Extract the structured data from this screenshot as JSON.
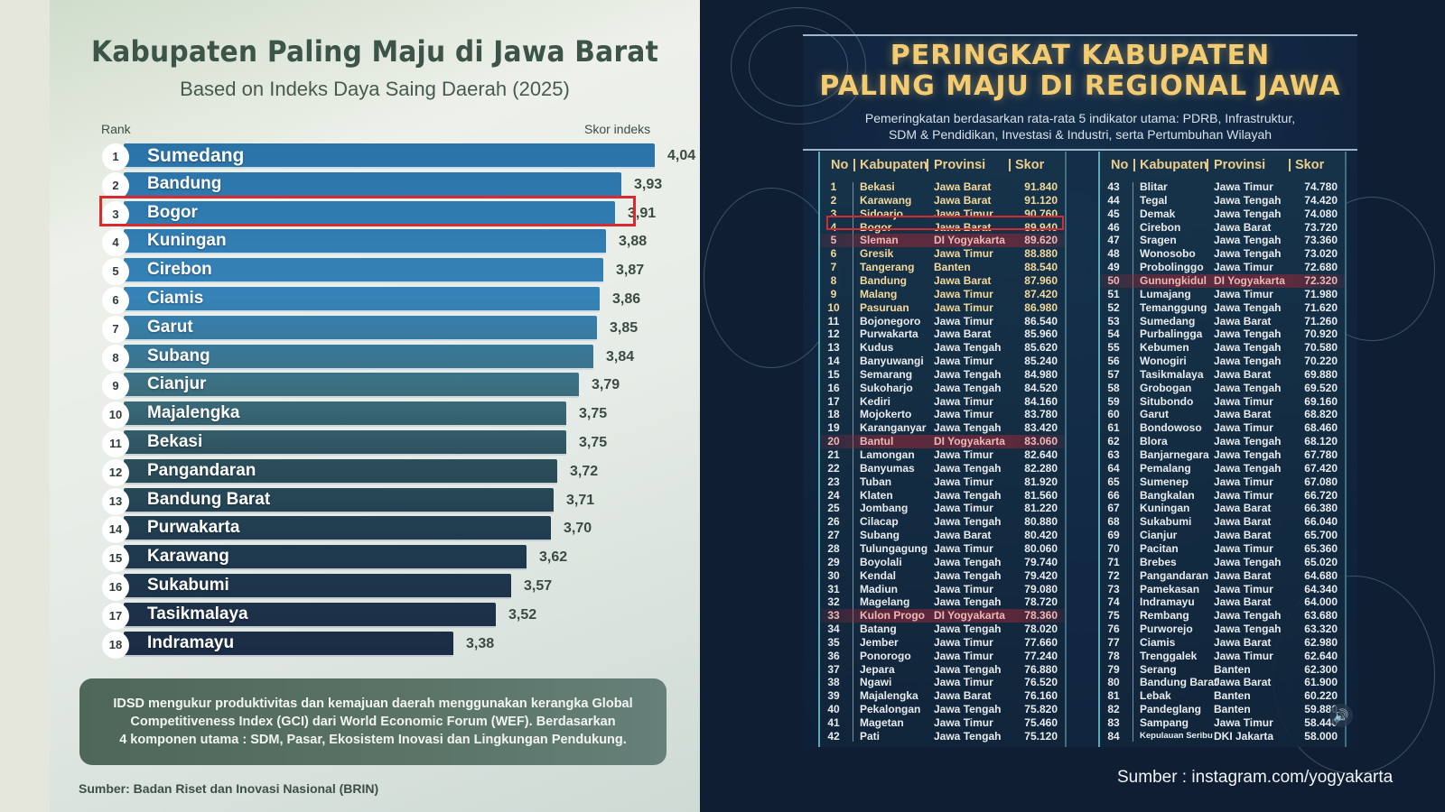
{
  "left_chart": {
    "title": "Kabupaten Paling Maju di Jawa Barat",
    "subtitle": "Based on Indeks Daya Saing Daerah (2025)",
    "rank_header": "Rank",
    "score_header": "Skor indeks",
    "note": "IDSD mengukur produktivitas dan kemajuan daerah menggunakan kerangka Global Competitiveness Index (GCI) dari World Economic Forum (WEF). Berdasarkan 4 komponen utama : SDM, Pasar, Ekosistem Inovasi dan Lingkungan Pendukung.",
    "note_lines": [
      "IDSD mengukur produktivitas dan kemajuan daerah menggunakan kerangka Global",
      "Competitiveness Index (GCI) dari World Economic Forum (WEF). Berdasarkan",
      "4 komponen utama : SDM, Pasar, Ekosistem Inovasi dan Lingkungan Pendukung."
    ],
    "source": "Sumber:  Badan Riset dan Inovasi Nasional (BRIN)",
    "highlight_rank": 3,
    "highlight_color": "#d82a2f"
  },
  "right_table": {
    "title_line1": "PERINGKAT KABUPATEN",
    "title_line2": "PALING MAJU DI REGIONAL JAWA",
    "subtitle_line1": "Pemeringkatan berdasarkan rata-rata 5 indikator utama: PDRB, Infrastruktur,",
    "subtitle_line2": "SDM & Pendidikan, Investasi & Industri, serta Pertumbuhan Wilayah",
    "headers": {
      "no": "No",
      "kabupaten": "Kabupaten",
      "provinsi": "Provinsi",
      "skor": "Skor"
    },
    "highlight_no": 4,
    "highlight_color": "#d52a2f",
    "emphasis_province": "DI Yogyakarta",
    "source": "Sumber : instagram.com/yogyakarta",
    "speaker_icon": "speaker-volume-icon"
  },
  "chart_data": [
    {
      "type": "bar",
      "orientation": "horizontal",
      "title": "Kabupaten Paling Maju di Jawa Barat",
      "subtitle": "Based on Indeks Daya Saing Daerah (2025)",
      "xlabel": "Skor indeks",
      "ylabel": "Rank",
      "categories": [
        "Sumedang",
        "Bandung",
        "Bogor",
        "Kuningan",
        "Cirebon",
        "Ciamis",
        "Garut",
        "Subang",
        "Cianjur",
        "Majalengka",
        "Bekasi",
        "Pangandaran",
        "Bandung Barat",
        "Purwakarta",
        "Karawang",
        "Sukabumi",
        "Tasikmalaya",
        "Indramayu"
      ],
      "values": [
        4.04,
        3.93,
        3.91,
        3.88,
        3.87,
        3.86,
        3.85,
        3.84,
        3.79,
        3.75,
        3.75,
        3.72,
        3.71,
        3.7,
        3.62,
        3.57,
        3.52,
        3.38
      ],
      "value_labels": [
        "4,04",
        "3,93",
        "3,91",
        "3,88",
        "3,87",
        "3,86",
        "3,85",
        "3,84",
        "3,79",
        "3,75",
        "3,75",
        "3,72",
        "3,71",
        "3,70",
        "3,62",
        "3,57",
        "3,52",
        "3,38"
      ],
      "annotations": [
        "Bogor (rank 3) highlighted with red box"
      ],
      "source": "Badan Riset dan Inovasi Nasional (BRIN)"
    },
    {
      "type": "table",
      "title": "Peringkat Kabupaten Paling Maju di Regional Jawa",
      "columns": [
        "No",
        "Kabupaten",
        "Provinsi",
        "Skor"
      ],
      "rows": [
        [
          1,
          "Bekasi",
          "Jawa Barat",
          "91.840"
        ],
        [
          2,
          "Karawang",
          "Jawa Barat",
          "91.120"
        ],
        [
          3,
          "Sidoarjo",
          "Jawa Timur",
          "90.760"
        ],
        [
          4,
          "Bogor",
          "Jawa Barat",
          "89.940"
        ],
        [
          5,
          "Sleman",
          "DI Yogyakarta",
          "89.620"
        ],
        [
          6,
          "Gresik",
          "Jawa Timur",
          "88.880"
        ],
        [
          7,
          "Tangerang",
          "Banten",
          "88.540"
        ],
        [
          8,
          "Bandung",
          "Jawa Barat",
          "87.960"
        ],
        [
          9,
          "Malang",
          "Jawa Timur",
          "87.420"
        ],
        [
          10,
          "Pasuruan",
          "Jawa Timur",
          "86.980"
        ],
        [
          11,
          "Bojonegoro",
          "Jawa Timur",
          "86.540"
        ],
        [
          12,
          "Purwakarta",
          "Jawa Barat",
          "85.960"
        ],
        [
          13,
          "Kudus",
          "Jawa Tengah",
          "85.620"
        ],
        [
          14,
          "Banyuwangi",
          "Jawa Timur",
          "85.240"
        ],
        [
          15,
          "Semarang",
          "Jawa Tengah",
          "84.980"
        ],
        [
          16,
          "Sukoharjo",
          "Jawa Tengah",
          "84.520"
        ],
        [
          17,
          "Kediri",
          "Jawa Timur",
          "84.160"
        ],
        [
          18,
          "Mojokerto",
          "Jawa Timur",
          "83.780"
        ],
        [
          19,
          "Karanganyar",
          "Jawa Tengah",
          "83.420"
        ],
        [
          20,
          "Bantul",
          "DI Yogyakarta",
          "83.060"
        ],
        [
          21,
          "Lamongan",
          "Jawa Timur",
          "82.640"
        ],
        [
          22,
          "Banyumas",
          "Jawa Tengah",
          "82.280"
        ],
        [
          23,
          "Tuban",
          "Jawa Timur",
          "81.920"
        ],
        [
          24,
          "Klaten",
          "Jawa Tengah",
          "81.560"
        ],
        [
          25,
          "Jombang",
          "Jawa Timur",
          "81.220"
        ],
        [
          26,
          "Cilacap",
          "Jawa Tengah",
          "80.880"
        ],
        [
          27,
          "Subang",
          "Jawa Barat",
          "80.420"
        ],
        [
          28,
          "Tulungagung",
          "Jawa Timur",
          "80.060"
        ],
        [
          29,
          "Boyolali",
          "Jawa Tengah",
          "79.740"
        ],
        [
          30,
          "Kendal",
          "Jawa Tengah",
          "79.420"
        ],
        [
          31,
          "Madiun",
          "Jawa Timur",
          "79.080"
        ],
        [
          32,
          "Magelang",
          "Jawa Tengah",
          "78.720"
        ],
        [
          33,
          "Kulon Progo",
          "DI Yogyakarta",
          "78.360"
        ],
        [
          34,
          "Batang",
          "Jawa Tengah",
          "78.020"
        ],
        [
          35,
          "Jember",
          "Jawa Timur",
          "77.660"
        ],
        [
          36,
          "Ponorogo",
          "Jawa Timur",
          "77.240"
        ],
        [
          37,
          "Jepara",
          "Jawa Tengah",
          "76.880"
        ],
        [
          38,
          "Ngawi",
          "Jawa Timur",
          "76.520"
        ],
        [
          39,
          "Majalengka",
          "Jawa Barat",
          "76.160"
        ],
        [
          40,
          "Pekalongan",
          "Jawa Tengah",
          "75.820"
        ],
        [
          41,
          "Magetan",
          "Jawa Timur",
          "75.460"
        ],
        [
          42,
          "Pati",
          "Jawa Tengah",
          "75.120"
        ],
        [
          43,
          "Blitar",
          "Jawa Timur",
          "74.780"
        ],
        [
          44,
          "Tegal",
          "Jawa Tengah",
          "74.420"
        ],
        [
          45,
          "Demak",
          "Jawa Tengah",
          "74.080"
        ],
        [
          46,
          "Cirebon",
          "Jawa Barat",
          "73.720"
        ],
        [
          47,
          "Sragen",
          "Jawa Tengah",
          "73.360"
        ],
        [
          48,
          "Wonosobo",
          "Jawa Tengah",
          "73.020"
        ],
        [
          49,
          "Probolinggo",
          "Jawa Timur",
          "72.680"
        ],
        [
          50,
          "Gunungkidul",
          "DI Yogyakarta",
          "72.320"
        ],
        [
          51,
          "Lumajang",
          "Jawa Timur",
          "71.980"
        ],
        [
          52,
          "Temanggung",
          "Jawa Tengah",
          "71.620"
        ],
        [
          53,
          "Sumedang",
          "Jawa Barat",
          "71.260"
        ],
        [
          54,
          "Purbalingga",
          "Jawa Tengah",
          "70.920"
        ],
        [
          55,
          "Kebumen",
          "Jawa Tengah",
          "70.580"
        ],
        [
          56,
          "Wonogiri",
          "Jawa Tengah",
          "70.220"
        ],
        [
          57,
          "Tasikmalaya",
          "Jawa Barat",
          "69.880"
        ],
        [
          58,
          "Grobogan",
          "Jawa Tengah",
          "69.520"
        ],
        [
          59,
          "Situbondo",
          "Jawa Timur",
          "69.160"
        ],
        [
          60,
          "Garut",
          "Jawa Barat",
          "68.820"
        ],
        [
          61,
          "Bondowoso",
          "Jawa Timur",
          "68.460"
        ],
        [
          62,
          "Blora",
          "Jawa Tengah",
          "68.120"
        ],
        [
          63,
          "Banjarnegara",
          "Jawa Tengah",
          "67.780"
        ],
        [
          64,
          "Pemalang",
          "Jawa Tengah",
          "67.420"
        ],
        [
          65,
          "Sumenep",
          "Jawa Timur",
          "67.080"
        ],
        [
          66,
          "Bangkalan",
          "Jawa Timur",
          "66.720"
        ],
        [
          67,
          "Kuningan",
          "Jawa Barat",
          "66.380"
        ],
        [
          68,
          "Sukabumi",
          "Jawa Barat",
          "66.040"
        ],
        [
          69,
          "Cianjur",
          "Jawa Barat",
          "65.700"
        ],
        [
          70,
          "Pacitan",
          "Jawa Timur",
          "65.360"
        ],
        [
          71,
          "Brebes",
          "Jawa Tengah",
          "65.020"
        ],
        [
          72,
          "Pangandaran",
          "Jawa Barat",
          "64.680"
        ],
        [
          73,
          "Pamekasan",
          "Jawa Timur",
          "64.340"
        ],
        [
          74,
          "Indramayu",
          "Jawa Barat",
          "64.000"
        ],
        [
          75,
          "Rembang",
          "Jawa Tengah",
          "63.680"
        ],
        [
          76,
          "Purworejo",
          "Jawa Tengah",
          "63.320"
        ],
        [
          77,
          "Ciamis",
          "Jawa Barat",
          "62.980"
        ],
        [
          78,
          "Trenggalek",
          "Jawa Timur",
          "62.640"
        ],
        [
          79,
          "Serang",
          "Banten",
          "62.300"
        ],
        [
          80,
          "Bandung Barat",
          "Jawa Barat",
          "61.900"
        ],
        [
          81,
          "Lebak",
          "Banten",
          "60.220"
        ],
        [
          82,
          "Pandeglang",
          "Banten",
          "59.880"
        ],
        [
          83,
          "Sampang",
          "Jawa Timur",
          "58.440"
        ],
        [
          84,
          "Kepulauan Seribu",
          "DKI Jakarta",
          "58.000"
        ]
      ],
      "annotations": [
        "Row 4 (Bogor) outlined in red",
        "DI Yogyakarta rows shaded red (5, 20, 33, 50)"
      ],
      "source": "instagram.com/yogyakarta"
    }
  ]
}
